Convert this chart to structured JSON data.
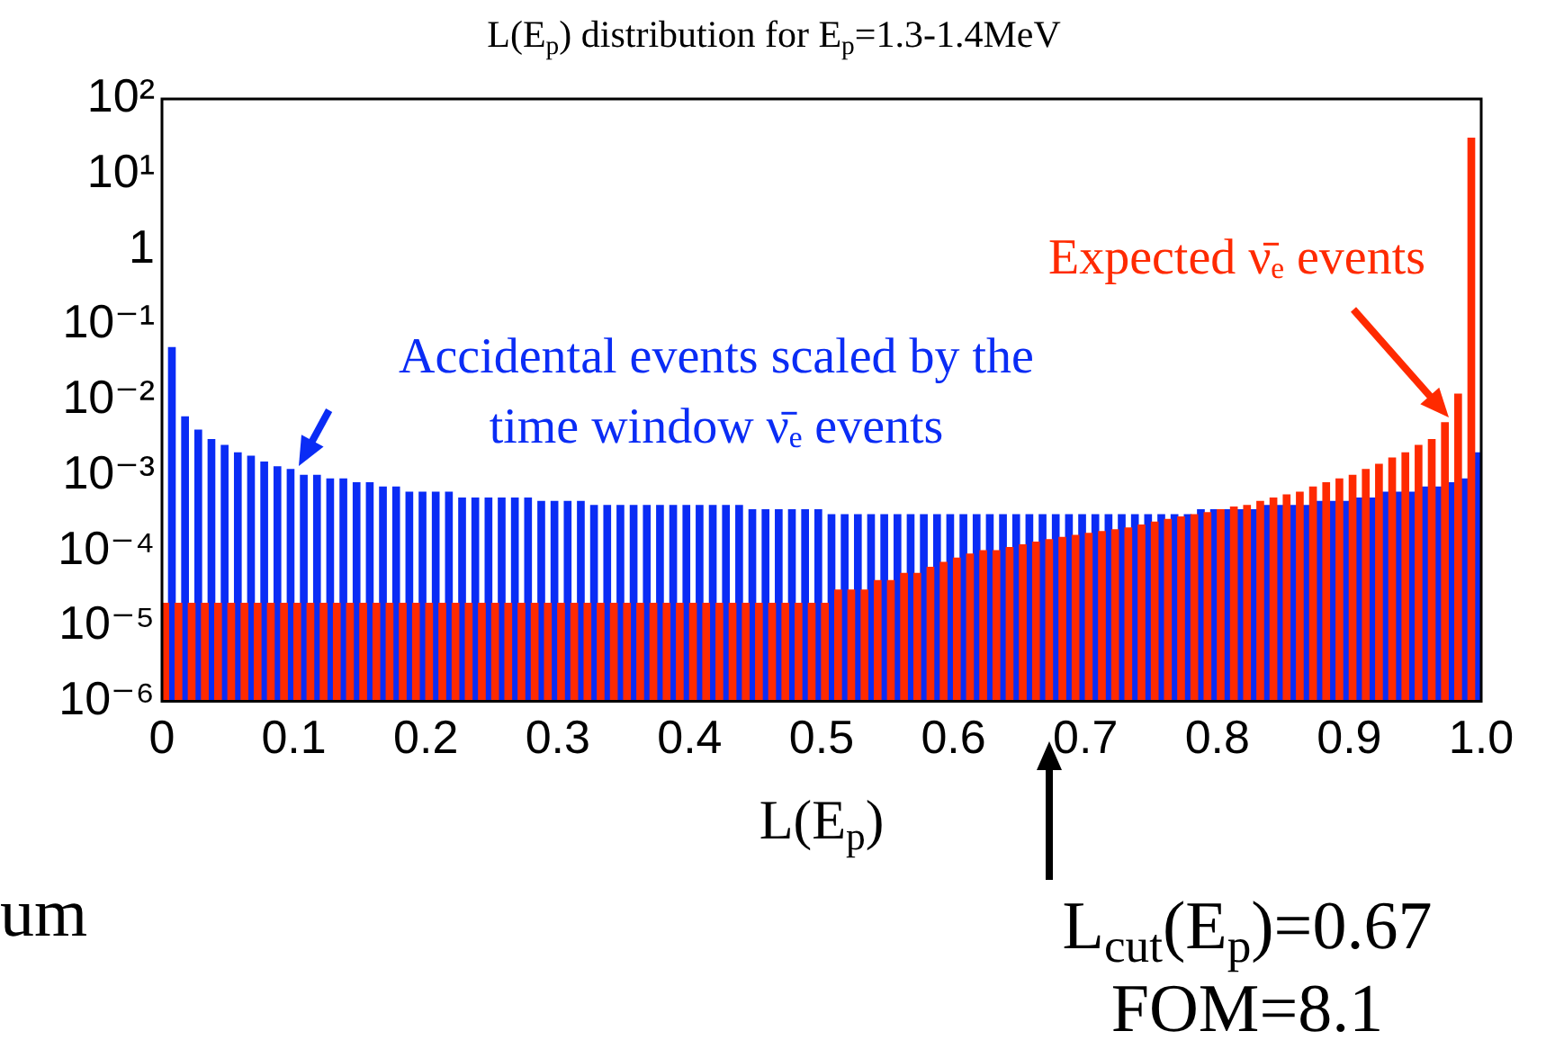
{
  "chart_data": {
    "type": "histogram",
    "title": "L(E$_{p}$) distribution for E$_{p}$=1.3-1.4MeV",
    "xlabel": "L(E$_{p}$)",
    "bins": [
      0,
      0.01,
      0.02,
      0.03,
      0.04,
      0.05,
      0.06,
      0.07,
      0.08,
      0.09,
      0.1,
      0.11,
      0.12,
      0.13,
      0.14,
      0.15,
      0.16,
      0.17,
      0.18,
      0.19,
      0.2,
      0.21,
      0.22,
      0.23,
      0.24,
      0.25,
      0.26,
      0.27,
      0.28,
      0.29,
      0.3,
      0.31,
      0.32,
      0.33,
      0.34,
      0.35,
      0.36,
      0.37,
      0.38,
      0.39,
      0.4,
      0.41,
      0.42,
      0.43,
      0.44,
      0.45,
      0.46,
      0.47,
      0.48,
      0.49,
      0.5,
      0.51,
      0.52,
      0.53,
      0.54,
      0.55,
      0.56,
      0.57,
      0.58,
      0.59,
      0.6,
      0.61,
      0.62,
      0.63,
      0.64,
      0.65,
      0.66,
      0.67,
      0.68,
      0.69,
      0.7,
      0.71,
      0.72,
      0.73,
      0.74,
      0.75,
      0.76,
      0.77,
      0.78,
      0.79,
      0.8,
      0.81,
      0.82,
      0.83,
      0.84,
      0.85,
      0.86,
      0.87,
      0.88,
      0.89,
      0.9,
      0.91,
      0.92,
      0.93,
      0.94,
      0.95,
      0.96,
      0.97,
      0.98,
      0.99,
      1.0
    ],
    "series": [
      {
        "color": "#ff2a00",
        "values": [
          2e-05,
          2e-05,
          2e-05,
          2e-05,
          2e-05,
          2e-05,
          2e-05,
          2e-05,
          2e-05,
          2e-05,
          2e-05,
          2e-05,
          2e-05,
          2e-05,
          2e-05,
          2e-05,
          2e-05,
          2e-05,
          2e-05,
          2e-05,
          2e-05,
          2e-05,
          2e-05,
          2e-05,
          2e-05,
          2e-05,
          2e-05,
          2e-05,
          2e-05,
          2e-05,
          2e-05,
          2e-05,
          2e-05,
          2e-05,
          2e-05,
          2e-05,
          2e-05,
          2e-05,
          2e-05,
          2e-05,
          2e-05,
          2e-05,
          2e-05,
          2e-05,
          2e-05,
          2e-05,
          2e-05,
          2e-05,
          2e-05,
          2e-05,
          2e-05,
          3e-05,
          3e-05,
          3e-05,
          4e-05,
          4e-05,
          5e-05,
          5e-05,
          6e-05,
          7e-05,
          8e-05,
          9e-05,
          0.0001,
          0.0001,
          0.00011,
          0.00012,
          0.00013,
          0.00014,
          0.00015,
          0.00016,
          0.00017,
          0.00018,
          0.00019,
          0.0002,
          0.00022,
          0.00024,
          0.00026,
          0.00028,
          0.0003,
          0.00032,
          0.00035,
          0.00038,
          0.0004,
          0.00045,
          0.0005,
          0.00055,
          0.0006,
          0.0007,
          0.0008,
          0.0009,
          0.001,
          0.0012,
          0.0014,
          0.0017,
          0.002,
          0.0025,
          0.003,
          0.005,
          0.012,
          30
        ]
      },
      {
        "color": "#0a2cf5",
        "values": [
          0.05,
          0.006,
          0.004,
          0.003,
          0.0025,
          0.002,
          0.0018,
          0.0015,
          0.0013,
          0.0012,
          0.001,
          0.001,
          0.0009,
          0.0009,
          0.0008,
          0.0008,
          0.0007,
          0.0007,
          0.0006,
          0.0006,
          0.0006,
          0.0006,
          0.0005,
          0.0005,
          0.0005,
          0.0005,
          0.0005,
          0.0005,
          0.00045,
          0.00045,
          0.00045,
          0.00045,
          0.0004,
          0.0004,
          0.0004,
          0.0004,
          0.0004,
          0.0004,
          0.0004,
          0.0004,
          0.0004,
          0.0004,
          0.0004,
          0.0004,
          0.00035,
          0.00035,
          0.00035,
          0.00035,
          0.00035,
          0.00035,
          0.0003,
          0.0003,
          0.0003,
          0.0003,
          0.0003,
          0.0003,
          0.0003,
          0.0003,
          0.0003,
          0.0003,
          0.0003,
          0.0003,
          0.0003,
          0.0003,
          0.0003,
          0.0003,
          0.0003,
          0.0003,
          0.0003,
          0.0003,
          0.0003,
          0.0003,
          0.0003,
          0.0003,
          0.0003,
          0.0003,
          0.0003,
          0.0003,
          0.00035,
          0.00035,
          0.00035,
          0.00035,
          0.00035,
          0.0004,
          0.0004,
          0.0004,
          0.0004,
          0.00045,
          0.00045,
          0.00045,
          0.0005,
          0.0005,
          0.0006,
          0.0006,
          0.0006,
          0.0007,
          0.0007,
          0.0008,
          0.0009,
          0.002
        ]
      }
    ],
    "log": "y",
    "xlim": [
      0,
      1
    ],
    "ylim": [
      1e-06,
      100
    ],
    "xticks": [
      0,
      0.1,
      0.2,
      0.3,
      0.4,
      0.5,
      0.6,
      0.7,
      0.8,
      0.9,
      {
        "value": 1,
        "label": "1.0"
      }
    ],
    "yticks": [
      {
        "value": 1e-06,
        "label": "10⁻⁶"
      },
      {
        "value": 1e-05,
        "label": "10⁻⁵"
      },
      {
        "value": 0.0001,
        "label": "10⁻⁴"
      },
      {
        "value": 0.001,
        "label": "10⁻³"
      },
      {
        "value": 0.01,
        "label": "10⁻²"
      },
      {
        "value": 0.1,
        "label": "10⁻¹"
      },
      1,
      {
        "value": 10,
        "label": "10¹"
      },
      {
        "value": 100,
        "label": "10²"
      }
    ],
    "grid": false,
    "legend": false,
    "annotations": [
      {
        "text": "Accidental events scaled by the\ntime window ν̄ₑ events",
        "x": 0.1,
        "y": 0.001
      },
      "Expected ν̄ₑ events",
      "L$_{cut}$(E$_{p}$)=0.67\nFOM=8.1",
      "um"
    ]
  }
}
